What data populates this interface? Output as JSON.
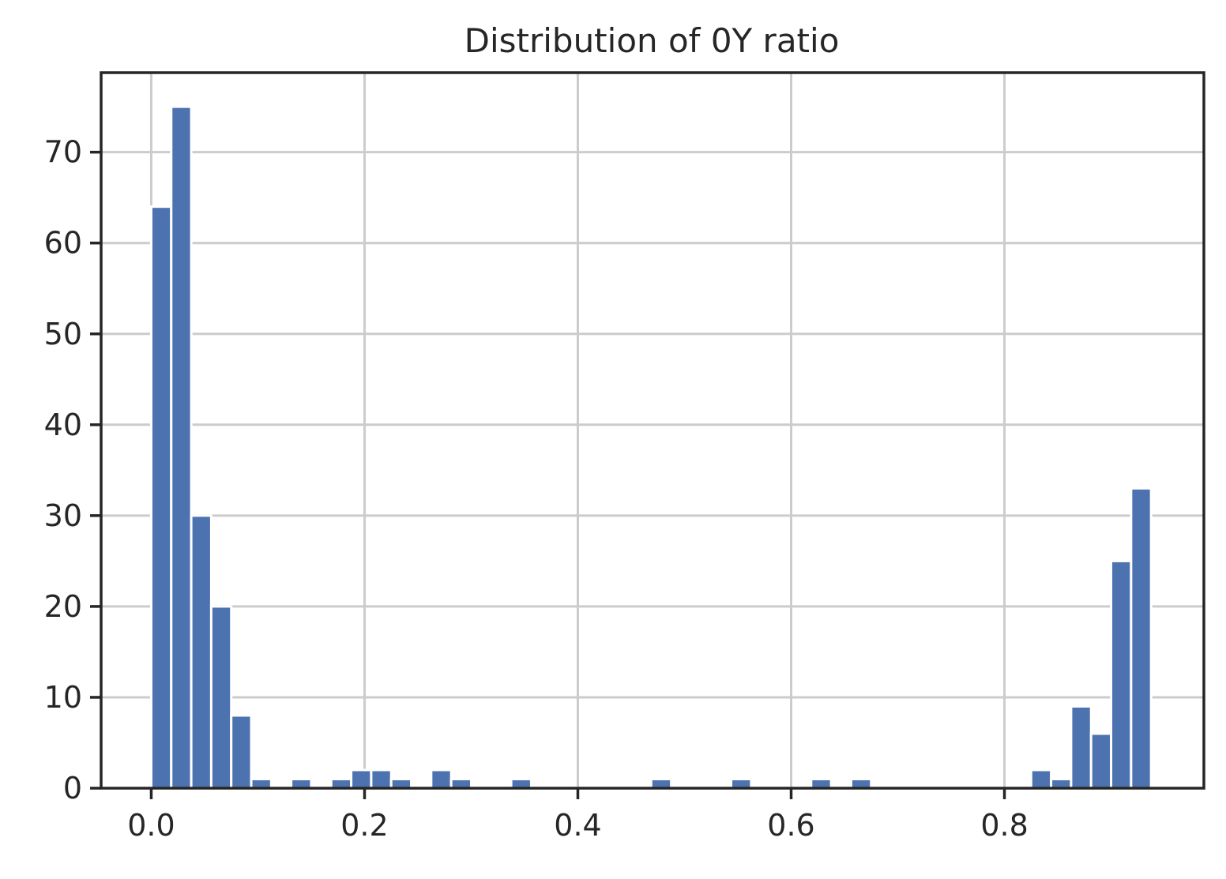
{
  "chart_data": {
    "type": "bar",
    "title": "Distribution of 0Y ratio",
    "xlabel": "",
    "ylabel": "",
    "xlim": [
      -0.047,
      0.987
    ],
    "ylim": [
      0,
      78.75
    ],
    "x_ticks": [
      0.0,
      0.2,
      0.4,
      0.6,
      0.8
    ],
    "x_tick_labels": [
      "0.0",
      "0.2",
      "0.4",
      "0.6",
      "0.8"
    ],
    "y_ticks": [
      0,
      10,
      20,
      30,
      40,
      50,
      60,
      70
    ],
    "y_tick_labels": [
      "0",
      "10",
      "20",
      "30",
      "40",
      "50",
      "60",
      "70"
    ],
    "bin_start": 0.0,
    "bin_width": 0.01875,
    "counts": [
      64,
      75,
      30,
      20,
      8,
      1,
      0,
      1,
      0,
      1,
      2,
      2,
      1,
      0,
      2,
      1,
      0,
      0,
      1,
      0,
      0,
      0,
      0,
      0,
      0,
      1,
      0,
      0,
      0,
      1,
      0,
      0,
      0,
      1,
      0,
      1,
      0,
      0,
      0,
      0,
      0,
      0,
      0,
      0,
      2,
      1,
      9,
      6,
      25,
      33
    ],
    "bar_color": "#4c72b0",
    "grid": true,
    "legend": "none"
  }
}
